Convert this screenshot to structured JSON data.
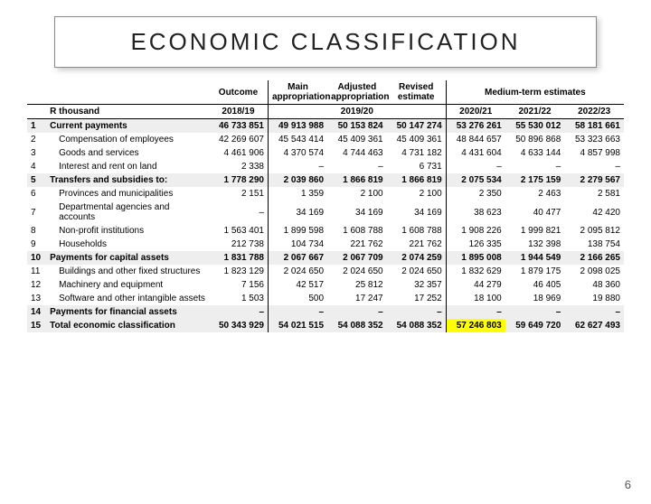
{
  "title": "ECONOMIC CLASSIFICATION",
  "page_number": "6",
  "headers_top": {
    "blank1": "",
    "blank2": "",
    "outcome": "Outcome",
    "main_app": "Main appropriation",
    "adj_app": "Adjusted appropriation",
    "rev_est": "Revised estimate",
    "mte": "Medium-term estimates"
  },
  "headers_yrs": {
    "blank": "",
    "rthousand": "R thousand",
    "y1819": "2018/19",
    "y1920": "2019/20",
    "y2021": "2020/21",
    "y2122": "2021/22",
    "y2223": "2022/23"
  },
  "rows": [
    {
      "n": "1",
      "label": "Current payments",
      "indent": false,
      "bold": true,
      "shade": true,
      "c": [
        "46 733 851",
        "49 913 988",
        "50 153 824",
        "50 147 274",
        "53 276 261",
        "55 530 012",
        "58 181 661"
      ]
    },
    {
      "n": "2",
      "label": "Compensation of employees",
      "indent": true,
      "bold": false,
      "shade": false,
      "c": [
        "42 269 607",
        "45 543 414",
        "45 409 361",
        "45 409 361",
        "48 844 657",
        "50 896 868",
        "53 323 663"
      ]
    },
    {
      "n": "3",
      "label": "Goods and services",
      "indent": true,
      "bold": false,
      "shade": false,
      "c": [
        "4 461 906",
        "4 370 574",
        "4 744 463",
        "4 731 182",
        "4 431 604",
        "4 633 144",
        "4 857 998"
      ]
    },
    {
      "n": "4",
      "label": "Interest and rent on land",
      "indent": true,
      "bold": false,
      "shade": false,
      "c": [
        "2 338",
        "–",
        "–",
        "6 731",
        "–",
        "–",
        "–"
      ]
    },
    {
      "n": "5",
      "label": "Transfers and subsidies to:",
      "indent": false,
      "bold": true,
      "shade": true,
      "c": [
        "1 778 290",
        "2 039 860",
        "1 866 819",
        "1 866 819",
        "2 075 534",
        "2 175 159",
        "2 279 567"
      ]
    },
    {
      "n": "6",
      "label": "Provinces and municipalities",
      "indent": true,
      "bold": false,
      "shade": false,
      "c": [
        "2 151",
        "1 359",
        "2 100",
        "2 100",
        "2 350",
        "2 463",
        "2 581"
      ]
    },
    {
      "n": "7",
      "label": "Departmental agencies and accounts",
      "indent": true,
      "bold": false,
      "shade": false,
      "c": [
        "–",
        "34 169",
        "34 169",
        "34 169",
        "38 623",
        "40 477",
        "42 420"
      ]
    },
    {
      "n": "8",
      "label": "Non-profit institutions",
      "indent": true,
      "bold": false,
      "shade": false,
      "c": [
        "1 563 401",
        "1 899 598",
        "1 608 788",
        "1 608 788",
        "1 908 226",
        "1 999 821",
        "2 095 812"
      ]
    },
    {
      "n": "9",
      "label": "Households",
      "indent": true,
      "bold": false,
      "shade": false,
      "c": [
        "212 738",
        "104 734",
        "221 762",
        "221 762",
        "126 335",
        "132 398",
        "138 754"
      ]
    },
    {
      "n": "10",
      "label": "Payments for capital assets",
      "indent": false,
      "bold": true,
      "shade": true,
      "c": [
        "1 831 788",
        "2 067 667",
        "2 067 709",
        "2 074 259",
        "1 895 008",
        "1 944 549",
        "2 166 265"
      ]
    },
    {
      "n": "11",
      "label": "Buildings and other fixed structures",
      "indent": true,
      "bold": false,
      "shade": false,
      "c": [
        "1 823 129",
        "2 024 650",
        "2 024 650",
        "2 024 650",
        "1 832 629",
        "1 879 175",
        "2 098 025"
      ]
    },
    {
      "n": "12",
      "label": "Machinery and equipment",
      "indent": true,
      "bold": false,
      "shade": false,
      "c": [
        "7 156",
        "42 517",
        "25 812",
        "32 357",
        "44 279",
        "46 405",
        "48 360"
      ]
    },
    {
      "n": "13",
      "label": "Software and other intangible assets",
      "indent": true,
      "bold": false,
      "shade": false,
      "c": [
        "1 503",
        "500",
        "17 247",
        "17 252",
        "18 100",
        "18 969",
        "19 880"
      ]
    },
    {
      "n": "14",
      "label": "Payments for financial assets",
      "indent": false,
      "bold": true,
      "shade": true,
      "c": [
        "–",
        "–",
        "–",
        "–",
        "–",
        "–",
        "–"
      ]
    },
    {
      "n": "15",
      "label": "Total economic classification",
      "indent": false,
      "bold": true,
      "shade": true,
      "c": [
        "50 343 929",
        "54 021 515",
        "54 088 352",
        "54 088 352",
        "57 246 803",
        "59 649 720",
        "62 627 493"
      ],
      "hl": 4
    }
  ]
}
